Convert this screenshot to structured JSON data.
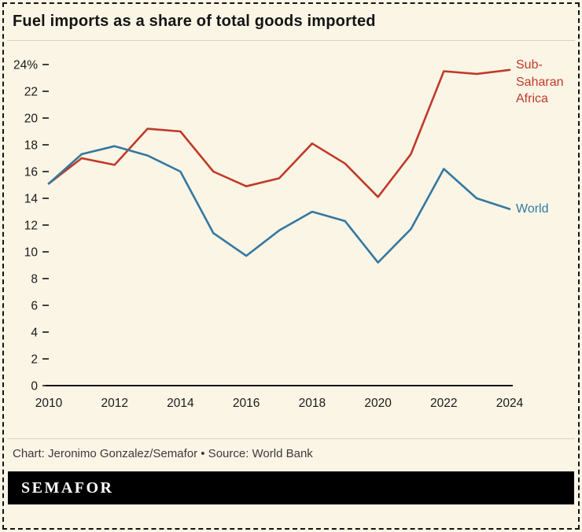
{
  "header": {
    "title": "Fuel imports as a share of total goods imported"
  },
  "chart_data": {
    "type": "line",
    "title": "Fuel imports as a share of total goods imported",
    "x": [
      2010,
      2011,
      2012,
      2013,
      2014,
      2015,
      2016,
      2017,
      2018,
      2019,
      2020,
      2021,
      2022,
      2023,
      2024
    ],
    "xticks": [
      2010,
      2012,
      2014,
      2016,
      2018,
      2020,
      2022,
      2024
    ],
    "ylim": [
      0,
      24
    ],
    "yticks": [
      0,
      2,
      4,
      6,
      8,
      10,
      12,
      14,
      16,
      18,
      20,
      22,
      24
    ],
    "ytick_labels": [
      "0",
      "2",
      "4",
      "6",
      "8",
      "10",
      "12",
      "14",
      "16",
      "18",
      "20",
      "22",
      "24%"
    ],
    "grid": false,
    "legend_position": "right",
    "series": [
      {
        "name": "Sub-Saharan Africa",
        "color": "#c03a28",
        "values": [
          15.1,
          17.0,
          16.5,
          19.2,
          19.0,
          16.0,
          14.9,
          15.5,
          18.1,
          16.6,
          14.1,
          17.3,
          23.5,
          23.3,
          23.6
        ]
      },
      {
        "name": "World",
        "color": "#34789f",
        "values": [
          15.1,
          17.3,
          17.9,
          17.2,
          16.0,
          11.4,
          9.7,
          11.6,
          13.0,
          12.3,
          9.2,
          11.7,
          16.2,
          14.0,
          13.2
        ]
      }
    ]
  },
  "footer": {
    "credit": "Chart: Jeronimo Gonzalez/Semafor • Source: World Bank",
    "brand": "SEMAFOR"
  }
}
